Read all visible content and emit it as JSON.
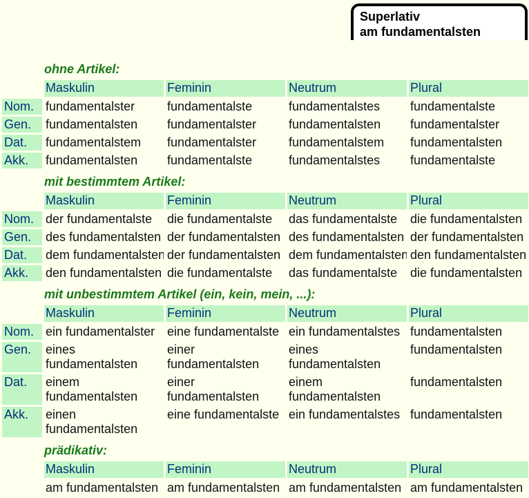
{
  "title_box": {
    "line1": "Superlativ",
    "line2": "am fundamentalsten"
  },
  "columns": [
    "Maskulin",
    "Feminin",
    "Neutrum",
    "Plural"
  ],
  "sections": [
    {
      "heading": "ohne Artikel:",
      "row_labels": [
        "Nom.",
        "Gen.",
        "Dat.",
        "Akk."
      ],
      "rows": [
        [
          "fundamentalster",
          "fundamentalste",
          "fundamentalstes",
          "fundamentalste"
        ],
        [
          "fundamentalsten",
          "fundamentalster",
          "fundamentalsten",
          "fundamentalster"
        ],
        [
          "fundamentalstem",
          "fundamentalster",
          "fundamentalstem",
          "fundamentalsten"
        ],
        [
          "fundamentalsten",
          "fundamentalste",
          "fundamentalstes",
          "fundamentalste"
        ]
      ]
    },
    {
      "heading": "mit bestimmtem Artikel:",
      "row_labels": [
        "Nom.",
        "Gen.",
        "Dat.",
        "Akk."
      ],
      "rows": [
        [
          "der fundamentalste",
          "die fundamentalste",
          "das fundamentalste",
          "die fundamentalsten"
        ],
        [
          "des fundamentalsten",
          "der fundamentalsten",
          "des fundamentalsten",
          "der fundamentalsten"
        ],
        [
          "dem fundamentalsten",
          "der fundamentalsten",
          "dem fundamentalsten",
          "den fundamentalsten"
        ],
        [
          "den fundamentalsten",
          "die fundamentalste",
          "das fundamentalste",
          "die fundamentalsten"
        ]
      ]
    },
    {
      "heading": "mit unbestimmtem Artikel (ein, kein, mein, ...):",
      "row_labels": [
        "Nom.",
        "Gen.",
        "Dat.",
        "Akk."
      ],
      "rows": [
        [
          "ein fundamentalster",
          "eine fundamentalste",
          "ein fundamentalstes",
          "fundamentalsten"
        ],
        [
          "eines\nfundamentalsten",
          "einer\nfundamentalsten",
          "eines\nfundamentalsten",
          "fundamentalsten"
        ],
        [
          "einem\nfundamentalsten",
          "einer\nfundamentalsten",
          "einem\nfundamentalsten",
          "fundamentalsten"
        ],
        [
          "einen\nfundamentalsten",
          "eine fundamentalste",
          "ein fundamentalstes",
          "fundamentalsten"
        ]
      ]
    },
    {
      "heading": "prädikativ:",
      "row_labels": [],
      "rows": [
        [
          "am fundamentalsten",
          "am fundamentalsten",
          "am fundamentalsten",
          "am fundamentalsten"
        ]
      ]
    }
  ],
  "colors": {
    "page_background": "#FFFFEE",
    "header_cell_green": "#C1F5C5",
    "header_text_navy": "#003377",
    "section_heading_green": "#1A7A1A",
    "title_border": "#000000"
  }
}
